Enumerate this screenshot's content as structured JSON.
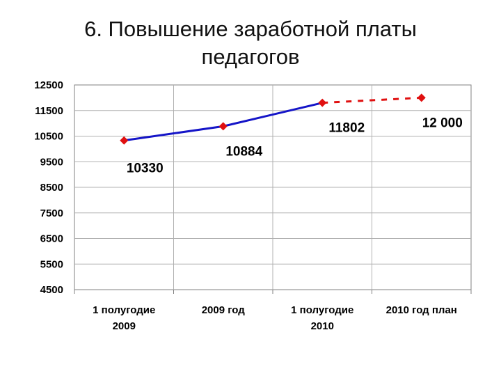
{
  "title_lines": [
    "6. Повышение заработной платы",
    "педагогов"
  ],
  "chart_data": {
    "type": "line",
    "title": "6. Повышение заработной платы педагогов",
    "categories": [
      [
        "1 полугодие",
        "2009"
      ],
      [
        "2009 год"
      ],
      [
        "1 полугодие",
        "2010"
      ],
      [
        "2010 год план"
      ]
    ],
    "values": [
      10330,
      10884,
      11802,
      12000
    ],
    "data_labels": [
      "10330",
      "10884",
      "11802",
      "12 000"
    ],
    "segment_styles": [
      "solid",
      "solid",
      "dashed"
    ],
    "ylim": [
      4500,
      12500
    ],
    "yticks": [
      4500,
      5500,
      6500,
      7500,
      8500,
      9500,
      10500,
      11500,
      12500
    ],
    "grid": true,
    "colors": {
      "solid_line": "#1515c8",
      "dashed_line": "#e01010",
      "marker": "#e01010",
      "grid": "#b0b0b0",
      "axis": "#808080"
    }
  }
}
